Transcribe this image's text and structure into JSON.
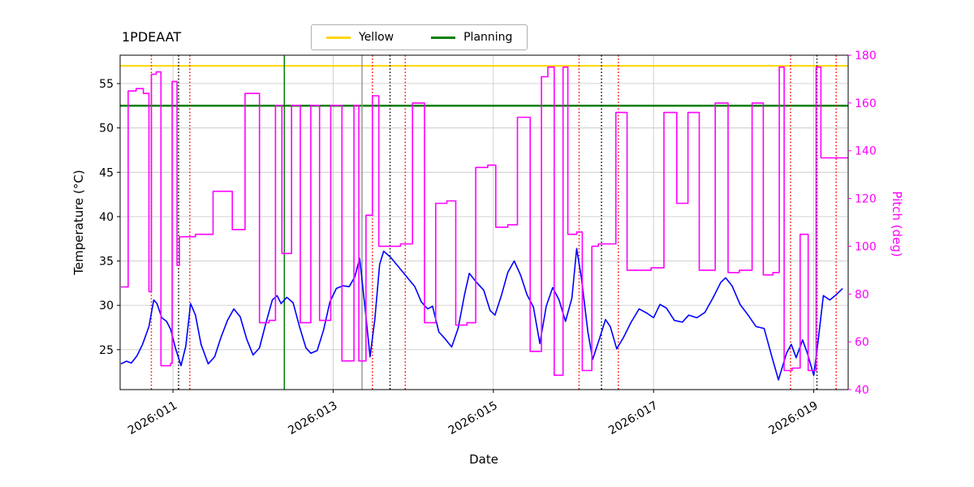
{
  "chart_data": {
    "type": "line",
    "title": "1PDEAAT",
    "xlabel": "Date",
    "ylabel_left": "Temperature (°C)",
    "ylabel_right": "Pitch (deg)",
    "xlim": [
      10.34,
      19.43
    ],
    "ylim_left": [
      20.5,
      58.2
    ],
    "ylim_right": [
      40,
      180
    ],
    "grid": true,
    "colors": {
      "temperature": "#0000ff",
      "pitch": "#ff00ff",
      "yellow_limit": "#ffd700",
      "planning_limit": "#008000",
      "red_event": "#ff0000",
      "black_event": "#000000",
      "grid": "#cccccc"
    },
    "x_ticks": [
      {
        "value": 11,
        "label": "2026:011"
      },
      {
        "value": 13,
        "label": "2026:013"
      },
      {
        "value": 15,
        "label": "2026:015"
      },
      {
        "value": 17,
        "label": "2026:017"
      },
      {
        "value": 19,
        "label": "2026:019"
      }
    ],
    "y_ticks_left": [
      25,
      30,
      35,
      40,
      45,
      50,
      55
    ],
    "y_ticks_right": [
      40,
      60,
      80,
      100,
      120,
      140,
      160,
      180
    ],
    "legend": {
      "position": "upper center",
      "entries": [
        {
          "label": "Yellow",
          "color": "#ffd700"
        },
        {
          "label": "Planning",
          "color": "#008000"
        }
      ]
    },
    "hlines": [
      {
        "name": "yellow-limit-line",
        "y": 57.0,
        "axis": "left",
        "color": "#ffd700",
        "width": 2
      },
      {
        "name": "planning-limit-line",
        "y": 52.5,
        "axis": "left",
        "color": "#008000",
        "width": 2.5
      }
    ],
    "vlines": [
      {
        "name": "red-dotted-1",
        "x": 10.73,
        "color": "#ff0000",
        "style": "dotted"
      },
      {
        "name": "black-dotted-1",
        "x": 11.07,
        "color": "#000000",
        "style": "dotted"
      },
      {
        "name": "red-dotted-2",
        "x": 11.21,
        "color": "#ff0000",
        "style": "dotted"
      },
      {
        "name": "green-solid-1",
        "x": 12.39,
        "color": "#008000",
        "style": "solid"
      },
      {
        "name": "gray-solid-1",
        "x": 13.36,
        "color": "#999999",
        "style": "solid"
      },
      {
        "name": "red-dotted-3",
        "x": 13.49,
        "color": "#ff0000",
        "style": "dotted"
      },
      {
        "name": "black-dotted-2",
        "x": 13.71,
        "color": "#000000",
        "style": "dotted"
      },
      {
        "name": "red-dotted-4",
        "x": 13.9,
        "color": "#ff0000",
        "style": "dotted"
      },
      {
        "name": "red-dotted-5",
        "x": 16.07,
        "color": "#ff0000",
        "style": "dotted"
      },
      {
        "name": "black-dotted-3",
        "x": 16.35,
        "color": "#000000",
        "style": "dotted"
      },
      {
        "name": "red-dotted-6",
        "x": 16.56,
        "color": "#ff0000",
        "style": "dotted"
      },
      {
        "name": "red-dotted-7",
        "x": 18.71,
        "color": "#ff0000",
        "style": "dotted"
      },
      {
        "name": "black-dotted-4",
        "x": 19.04,
        "color": "#000000",
        "style": "dotted"
      },
      {
        "name": "red-dotted-8",
        "x": 19.28,
        "color": "#ff0000",
        "style": "dotted"
      }
    ],
    "series": [
      {
        "name": "temperature",
        "axis": "left",
        "color": "#0000ff",
        "step": false,
        "points": [
          [
            10.35,
            23.4
          ],
          [
            10.42,
            23.7
          ],
          [
            10.48,
            23.5
          ],
          [
            10.55,
            24.3
          ],
          [
            10.62,
            25.6
          ],
          [
            10.7,
            27.6
          ],
          [
            10.76,
            30.6
          ],
          [
            10.8,
            30.2
          ],
          [
            10.86,
            28.6
          ],
          [
            10.92,
            28.2
          ],
          [
            10.97,
            27.3
          ],
          [
            11.03,
            25.2
          ],
          [
            11.1,
            23.2
          ],
          [
            11.16,
            25.4
          ],
          [
            11.22,
            30.2
          ],
          [
            11.28,
            28.9
          ],
          [
            11.35,
            25.6
          ],
          [
            11.44,
            23.4
          ],
          [
            11.52,
            24.2
          ],
          [
            11.6,
            26.4
          ],
          [
            11.68,
            28.3
          ],
          [
            11.76,
            29.6
          ],
          [
            11.84,
            28.7
          ],
          [
            11.92,
            26.2
          ],
          [
            12.0,
            24.4
          ],
          [
            12.08,
            25.2
          ],
          [
            12.16,
            28.0
          ],
          [
            12.24,
            30.6
          ],
          [
            12.3,
            31.1
          ],
          [
            12.35,
            30.2
          ],
          [
            12.42,
            30.9
          ],
          [
            12.5,
            30.3
          ],
          [
            12.58,
            27.6
          ],
          [
            12.66,
            25.2
          ],
          [
            12.72,
            24.6
          ],
          [
            12.8,
            24.9
          ],
          [
            12.88,
            27.2
          ],
          [
            12.96,
            30.4
          ],
          [
            13.04,
            31.9
          ],
          [
            13.12,
            32.2
          ],
          [
            13.2,
            32.1
          ],
          [
            13.27,
            33.2
          ],
          [
            13.33,
            35.3
          ],
          [
            13.4,
            29.5
          ],
          [
            13.46,
            24.2
          ],
          [
            13.52,
            28.4
          ],
          [
            13.58,
            34.6
          ],
          [
            13.63,
            36.1
          ],
          [
            13.72,
            35.4
          ],
          [
            13.82,
            34.3
          ],
          [
            13.92,
            33.2
          ],
          [
            14.02,
            32.1
          ],
          [
            14.1,
            30.4
          ],
          [
            14.18,
            29.6
          ],
          [
            14.24,
            29.9
          ],
          [
            14.32,
            27.0
          ],
          [
            14.4,
            26.2
          ],
          [
            14.48,
            25.3
          ],
          [
            14.56,
            27.4
          ],
          [
            14.64,
            31.2
          ],
          [
            14.7,
            33.6
          ],
          [
            14.78,
            32.7
          ],
          [
            14.88,
            31.7
          ],
          [
            14.96,
            29.4
          ],
          [
            15.02,
            28.9
          ],
          [
            15.1,
            31.1
          ],
          [
            15.18,
            33.7
          ],
          [
            15.26,
            35.0
          ],
          [
            15.34,
            33.4
          ],
          [
            15.42,
            31.2
          ],
          [
            15.5,
            29.8
          ],
          [
            15.58,
            25.7
          ],
          [
            15.66,
            29.9
          ],
          [
            15.74,
            32.0
          ],
          [
            15.82,
            30.6
          ],
          [
            15.9,
            28.2
          ],
          [
            15.98,
            30.8
          ],
          [
            16.04,
            36.4
          ],
          [
            16.1,
            33.0
          ],
          [
            16.18,
            27.0
          ],
          [
            16.24,
            23.9
          ],
          [
            16.32,
            26.1
          ],
          [
            16.4,
            28.4
          ],
          [
            16.46,
            27.6
          ],
          [
            16.54,
            25.1
          ],
          [
            16.62,
            26.3
          ],
          [
            16.72,
            28.1
          ],
          [
            16.82,
            29.6
          ],
          [
            16.92,
            29.1
          ],
          [
            17.0,
            28.6
          ],
          [
            17.08,
            30.1
          ],
          [
            17.16,
            29.7
          ],
          [
            17.26,
            28.3
          ],
          [
            17.36,
            28.1
          ],
          [
            17.44,
            28.9
          ],
          [
            17.54,
            28.6
          ],
          [
            17.64,
            29.2
          ],
          [
            17.74,
            30.8
          ],
          [
            17.84,
            32.6
          ],
          [
            17.9,
            33.1
          ],
          [
            17.98,
            32.2
          ],
          [
            18.08,
            30.1
          ],
          [
            18.18,
            28.9
          ],
          [
            18.28,
            27.6
          ],
          [
            18.38,
            27.4
          ],
          [
            18.48,
            24.1
          ],
          [
            18.56,
            21.6
          ],
          [
            18.66,
            24.6
          ],
          [
            18.72,
            25.6
          ],
          [
            18.78,
            24.1
          ],
          [
            18.86,
            26.1
          ],
          [
            18.92,
            24.6
          ],
          [
            19.0,
            22.1
          ],
          [
            19.06,
            26.4
          ],
          [
            19.12,
            31.1
          ],
          [
            19.2,
            30.6
          ],
          [
            19.28,
            31.2
          ],
          [
            19.36,
            31.9
          ]
        ]
      },
      {
        "name": "pitch",
        "axis": "right",
        "color": "#ff00ff",
        "step": true,
        "points": [
          [
            10.35,
            83
          ],
          [
            10.44,
            165
          ],
          [
            10.54,
            166
          ],
          [
            10.63,
            164
          ],
          [
            10.7,
            81
          ],
          [
            10.73,
            172
          ],
          [
            10.79,
            173
          ],
          [
            10.85,
            50
          ],
          [
            10.97,
            51
          ],
          [
            10.99,
            169
          ],
          [
            11.05,
            92
          ],
          [
            11.08,
            104
          ],
          [
            11.28,
            105
          ],
          [
            11.5,
            123
          ],
          [
            11.74,
            107
          ],
          [
            11.9,
            164
          ],
          [
            12.08,
            68
          ],
          [
            12.2,
            69
          ],
          [
            12.28,
            159
          ],
          [
            12.36,
            97
          ],
          [
            12.48,
            159
          ],
          [
            12.59,
            68
          ],
          [
            12.72,
            159
          ],
          [
            12.83,
            69
          ],
          [
            12.97,
            159
          ],
          [
            13.11,
            52
          ],
          [
            13.26,
            159
          ],
          [
            13.32,
            52
          ],
          [
            13.41,
            113
          ],
          [
            13.49,
            163
          ],
          [
            13.57,
            100
          ],
          [
            13.84,
            101
          ],
          [
            13.99,
            160
          ],
          [
            14.14,
            68
          ],
          [
            14.28,
            118
          ],
          [
            14.42,
            119
          ],
          [
            14.53,
            67
          ],
          [
            14.67,
            68
          ],
          [
            14.78,
            133
          ],
          [
            14.93,
            134
          ],
          [
            15.03,
            108
          ],
          [
            15.18,
            109
          ],
          [
            15.3,
            154
          ],
          [
            15.46,
            56
          ],
          [
            15.6,
            171
          ],
          [
            15.68,
            175
          ],
          [
            15.76,
            46
          ],
          [
            15.87,
            175
          ],
          [
            15.93,
            105
          ],
          [
            16.04,
            106
          ],
          [
            16.11,
            48
          ],
          [
            16.23,
            100
          ],
          [
            16.31,
            101
          ],
          [
            16.53,
            156
          ],
          [
            16.67,
            90
          ],
          [
            16.97,
            91
          ],
          [
            17.13,
            156
          ],
          [
            17.29,
            118
          ],
          [
            17.43,
            156
          ],
          [
            17.57,
            90
          ],
          [
            17.77,
            160
          ],
          [
            17.93,
            89
          ],
          [
            18.07,
            90
          ],
          [
            18.23,
            160
          ],
          [
            18.37,
            88
          ],
          [
            18.49,
            89
          ],
          [
            18.57,
            175
          ],
          [
            18.63,
            48
          ],
          [
            18.73,
            49
          ],
          [
            18.83,
            105
          ],
          [
            18.93,
            48
          ],
          [
            19.03,
            175
          ],
          [
            19.09,
            137
          ],
          [
            19.36,
            137
          ]
        ]
      }
    ]
  }
}
